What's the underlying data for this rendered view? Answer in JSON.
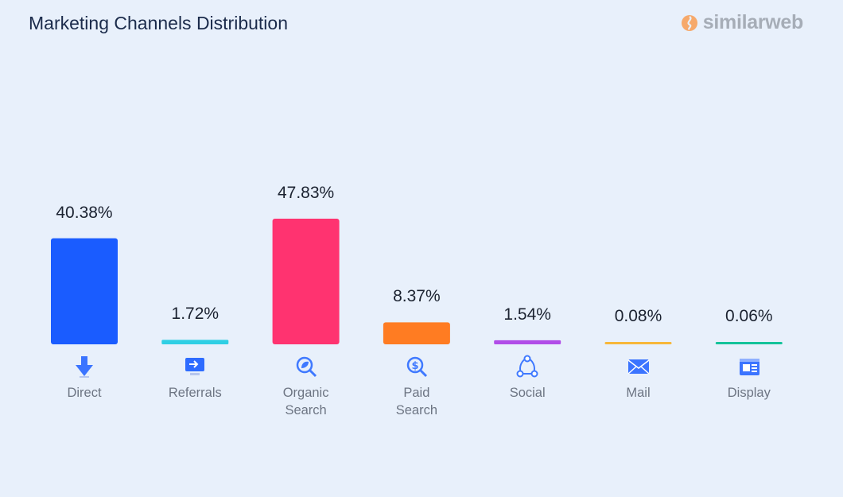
{
  "header": {
    "title": "Marketing Channels Distribution",
    "brand_name": "similarweb",
    "brand_colors": [
      "#f6a96b",
      "#a6adb7"
    ]
  },
  "chart_data": {
    "type": "bar",
    "title": "Marketing Channels Distribution",
    "xlabel": "",
    "ylabel": "",
    "ylim": [
      0,
      47.83
    ],
    "grid": false,
    "categories": [
      "Direct",
      "Referrals",
      "Organic\nSearch",
      "Paid\nSearch",
      "Social",
      "Mail",
      "Display"
    ],
    "values": [
      40.38,
      1.72,
      47.83,
      8.37,
      1.54,
      0.08,
      0.06
    ],
    "value_labels": [
      "40.38%",
      "1.72%",
      "47.83%",
      "8.37%",
      "1.54%",
      "0.08%",
      "0.06%"
    ],
    "colors": [
      "#1a5cff",
      "#2fcfe4",
      "#ff3370",
      "#ff7c22",
      "#b14de8",
      "#f7b73a",
      "#14c39a"
    ],
    "icons": [
      "arrow-down-icon",
      "referral-arrow-icon",
      "leaf-search-icon",
      "dollar-search-icon",
      "social-network-icon",
      "mail-icon",
      "display-ad-icon"
    ]
  }
}
